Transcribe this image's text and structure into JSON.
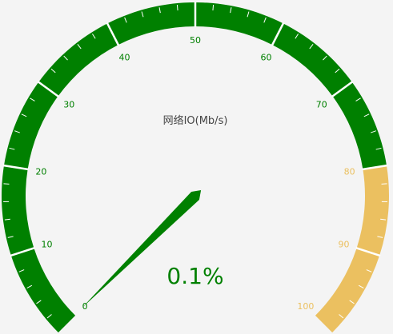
{
  "chart_data": {
    "type": "gauge",
    "title": "网络IO(Mb/s)",
    "min": 0,
    "max": 100,
    "value": 0.1,
    "value_label": "0.1%",
    "major_ticks": [
      0,
      10,
      20,
      30,
      40,
      50,
      60,
      70,
      80,
      90,
      100
    ],
    "tick_labels": [
      "0",
      "10",
      "20",
      "30",
      "40",
      "50",
      "60",
      "70",
      "80",
      "90",
      "100"
    ],
    "bands": [
      {
        "from": 0,
        "to": 80,
        "color": "#008000"
      },
      {
        "from": 80,
        "to": 100,
        "color": "#ebc060"
      }
    ],
    "pointer_value": 0.1,
    "pointer_color": "#008000",
    "value_color": "#008000"
  }
}
